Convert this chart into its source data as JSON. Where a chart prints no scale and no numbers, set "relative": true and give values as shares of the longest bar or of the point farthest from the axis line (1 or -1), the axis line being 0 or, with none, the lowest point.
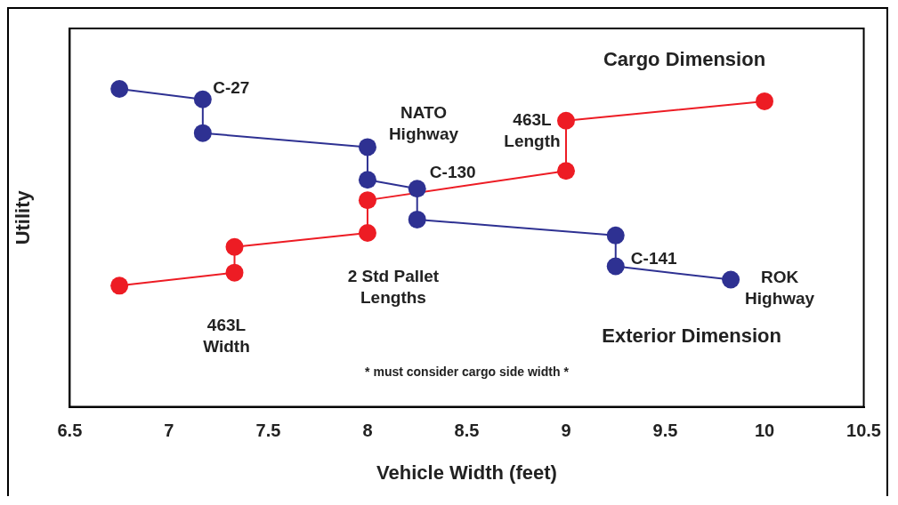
{
  "chart_data": {
    "type": "line",
    "relative": true,
    "xlabel": "Vehicle Width (feet)",
    "ylabel": "Utility",
    "xlim": [
      6.5,
      10.5
    ],
    "xticks": [
      6.5,
      7,
      7.5,
      8,
      8.5,
      9,
      9.5,
      10,
      10.5
    ],
    "grid": false,
    "marker": "circle",
    "line_style": "solid",
    "series": [
      {
        "name": "Exterior Dimension",
        "color": "#2e3192",
        "x": [
          6.75,
          7.17,
          7.17,
          8.0,
          8.0,
          8.25,
          8.25,
          9.25,
          9.25,
          9.83
        ],
        "values": [
          1,
          0.967,
          0.861,
          0.817,
          0.714,
          0.686,
          0.589,
          0.539,
          0.442,
          0.4
        ]
      },
      {
        "name": "Cargo Dimension",
        "color": "#ed1c24",
        "x": [
          6.75,
          7.33,
          7.33,
          8.0,
          8.0,
          9.0,
          9.0,
          10.0
        ],
        "values": [
          0.381,
          0.422,
          0.503,
          0.547,
          0.65,
          0.742,
          0.9,
          0.961
        ]
      }
    ],
    "annotations": [
      {
        "text": "C-27",
        "x": 7.17,
        "y": 0.967
      },
      {
        "text": "NATO\nHighway",
        "x": 8.0,
        "y": 0.817
      },
      {
        "text": "463L\nLength",
        "x": 9.0,
        "y": 0.9
      },
      {
        "text": "C-130",
        "x": 8.25,
        "y": 0.686
      },
      {
        "text": "C-141",
        "x": 9.25,
        "y": 0.442
      },
      {
        "text": "ROK\nHighway",
        "x": 9.83,
        "y": 0.4
      },
      {
        "text": "2 Std Pallet\nLengths",
        "x": 8.0,
        "y": 0.547
      },
      {
        "text": "463L\nWidth",
        "x": 7.33,
        "y": 0.422
      },
      "* must consider cargo side width *"
    ]
  }
}
